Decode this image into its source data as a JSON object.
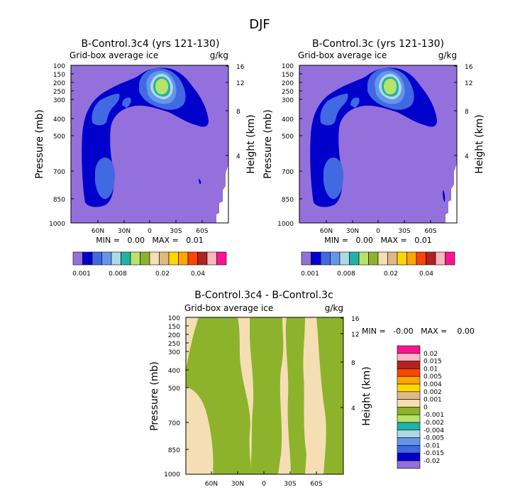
{
  "figure_title": "DJF",
  "palette_abs": [
    "#9370db",
    "#0000cd",
    "#4169e1",
    "#6495ed",
    "#add8e6",
    "#20b2aa",
    "#b7e36a",
    "#8db32d",
    "#f5deb3",
    "#deb887",
    "#ffd700",
    "#ffa500",
    "#ff4500",
    "#b22222",
    "#ffb6c1",
    "#ff1493"
  ],
  "palette_diff": [
    "#9370db",
    "#0000cd",
    "#4169e1",
    "#6495ed",
    "#add8e6",
    "#20b2aa",
    "#b7e36a",
    "#8db32d",
    "#f5deb3",
    "#deb887",
    "#ffd700",
    "#ffa500",
    "#ff4500",
    "#b22222",
    "#ffb6c1",
    "#ff1493"
  ],
  "chart_data": [
    {
      "type": "heatmap",
      "title": "B-Control.3c4 (yrs 121-130)",
      "subtitle_left": "Grid-box average ice",
      "subtitle_right": "g/kg",
      "ylabel": "Pressure (mb)",
      "y2label": "Height (km)",
      "xticks": [
        "60N",
        "30N",
        "0",
        "30S",
        "60S"
      ],
      "yticks": [
        "100",
        "150",
        "200",
        "250",
        "300",
        "400",
        "500",
        "700",
        "850",
        "1000"
      ],
      "y2ticks": [
        "16",
        "12",
        "8",
        "4"
      ],
      "min_max_text": "MIN =   0.00   MAX =   0.01",
      "colorbar_labels": [
        "0.001",
        "0.008",
        "0.02",
        "0.04"
      ],
      "levels": [
        0.001,
        0.002,
        0.004,
        0.006,
        0.008,
        0.01,
        0.012,
        0.015,
        0.02,
        0.025,
        0.03,
        0.035,
        0.04,
        0.05,
        0.06
      ],
      "min": 0.0,
      "max": 0.01
    },
    {
      "type": "heatmap",
      "title": "B-Control.3c (yrs 121-130)",
      "subtitle_left": "Grid-box average ice",
      "subtitle_right": "g/kg",
      "ylabel": "Pressure (mb)",
      "y2label": "Height (km)",
      "xticks": [
        "60N",
        "30N",
        "0",
        "30S",
        "60S"
      ],
      "yticks": [
        "100",
        "150",
        "200",
        "250",
        "300",
        "400",
        "500",
        "700",
        "850",
        "1000"
      ],
      "y2ticks": [
        "16",
        "12",
        "8",
        "4"
      ],
      "min_max_text": "MIN =   0.00   MAX =   0.01",
      "colorbar_labels": [
        "0.001",
        "0.008",
        "0.02",
        "0.04"
      ],
      "levels": [
        0.001,
        0.002,
        0.004,
        0.006,
        0.008,
        0.01,
        0.012,
        0.015,
        0.02,
        0.025,
        0.03,
        0.035,
        0.04,
        0.05,
        0.06
      ],
      "min": 0.0,
      "max": 0.01
    },
    {
      "type": "heatmap",
      "title": "B-Control.3c4 - B-Control.3c",
      "subtitle_left": "Grid-box average ice",
      "subtitle_right": "g/kg",
      "ylabel": "Pressure (mb)",
      "y2label": "Height (km)",
      "xticks": [
        "60N",
        "30N",
        "0",
        "30S",
        "60S"
      ],
      "yticks": [
        "100",
        "150",
        "200",
        "250",
        "300",
        "400",
        "500",
        "700",
        "850",
        "1000"
      ],
      "y2ticks": [
        "16",
        "12",
        "8",
        "4"
      ],
      "min_max_text": "MIN =   -0.00   MAX =    0.00",
      "colorbar_labels_top_to_bottom": [
        "0.02",
        "0.015",
        "0.01",
        "0.005",
        "0.004",
        "0.002",
        "0.001",
        "0",
        "-0.001",
        "-0.002",
        "-0.004",
        "-0.005",
        "-0.01",
        "-0.015",
        "-0.02"
      ],
      "min": -0.0,
      "max": 0.0
    }
  ]
}
